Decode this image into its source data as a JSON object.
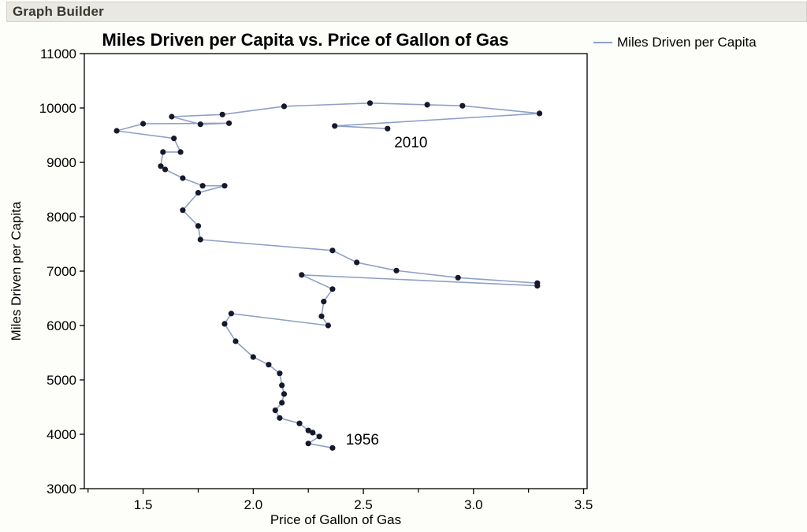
{
  "window": {
    "title": "Graph Builder"
  },
  "chart": {
    "title": "Miles Driven per Capita vs. Price of Gallon of Gas",
    "legend": {
      "label": "Miles Driven per Capita",
      "line_color": "#8fa0c6"
    }
  },
  "chart_data": {
    "type": "line",
    "title": "Miles Driven per Capita vs. Price of Gallon of Gas",
    "xlabel": "Price of Gallon of Gas",
    "ylabel": "Miles Driven per Capita",
    "xlim": [
      1.233,
      3.516
    ],
    "ylim": [
      3000,
      11000
    ],
    "x_ticks": [
      1.5,
      2.0,
      2.5,
      3.0,
      3.5
    ],
    "x_tick_labels": [
      "1.5",
      "2.0",
      "2.5",
      "3.0",
      "3.5"
    ],
    "x_minor_ticks": [
      1.25,
      1.75,
      2.25,
      2.75,
      3.25
    ],
    "y_ticks": [
      3000,
      4000,
      5000,
      6000,
      7000,
      8000,
      9000,
      10000,
      11000
    ],
    "y_tick_labels": [
      "3000",
      "4000",
      "5000",
      "6000",
      "7000",
      "8000",
      "9000",
      "10000",
      "11000"
    ],
    "grid": false,
    "legend_position": "top-right",
    "colors": {
      "line": "#8fa0c6",
      "marker": "#16182c",
      "frame": "#000000"
    },
    "series": [
      {
        "name": "Miles Driven per Capita",
        "note": "connected scatter in year order 1956 to 2010, [price_per_gallon, miles_per_capita]",
        "points": [
          [
            2.36,
            3750
          ],
          [
            2.25,
            3830
          ],
          [
            2.3,
            3960
          ],
          [
            2.27,
            4030
          ],
          [
            2.25,
            4070
          ],
          [
            2.21,
            4200
          ],
          [
            2.12,
            4300
          ],
          [
            2.1,
            4440
          ],
          [
            2.13,
            4580
          ],
          [
            2.14,
            4740
          ],
          [
            2.13,
            4900
          ],
          [
            2.12,
            5120
          ],
          [
            2.07,
            5280
          ],
          [
            2.0,
            5420
          ],
          [
            1.92,
            5710
          ],
          [
            1.87,
            6030
          ],
          [
            1.9,
            6220
          ],
          [
            2.34,
            6000
          ],
          [
            2.31,
            6170
          ],
          [
            2.32,
            6440
          ],
          [
            2.36,
            6670
          ],
          [
            2.22,
            6930
          ],
          [
            3.29,
            6730
          ],
          [
            3.29,
            6780
          ],
          [
            2.93,
            6880
          ],
          [
            2.65,
            7010
          ],
          [
            2.47,
            7160
          ],
          [
            2.36,
            7380
          ],
          [
            1.76,
            7580
          ],
          [
            1.75,
            7830
          ],
          [
            1.68,
            8120
          ],
          [
            1.75,
            8440
          ],
          [
            1.87,
            8570
          ],
          [
            1.77,
            8570
          ],
          [
            1.68,
            8710
          ],
          [
            1.6,
            8870
          ],
          [
            1.58,
            8930
          ],
          [
            1.59,
            9190
          ],
          [
            1.67,
            9190
          ],
          [
            1.64,
            9440
          ],
          [
            1.38,
            9580
          ],
          [
            1.5,
            9710
          ],
          [
            1.89,
            9720
          ],
          [
            1.76,
            9700
          ],
          [
            1.63,
            9840
          ],
          [
            1.86,
            9880
          ],
          [
            2.14,
            10030
          ],
          [
            2.53,
            10090
          ],
          [
            2.79,
            10060
          ],
          [
            2.95,
            10040
          ],
          [
            3.3,
            9900
          ],
          [
            2.37,
            9670
          ],
          [
            2.61,
            9620
          ]
        ]
      }
    ],
    "annotations": [
      {
        "text": "1956",
        "x": 2.42,
        "y": 3900
      },
      {
        "text": "2010",
        "x": 2.64,
        "y": 9360
      }
    ]
  }
}
